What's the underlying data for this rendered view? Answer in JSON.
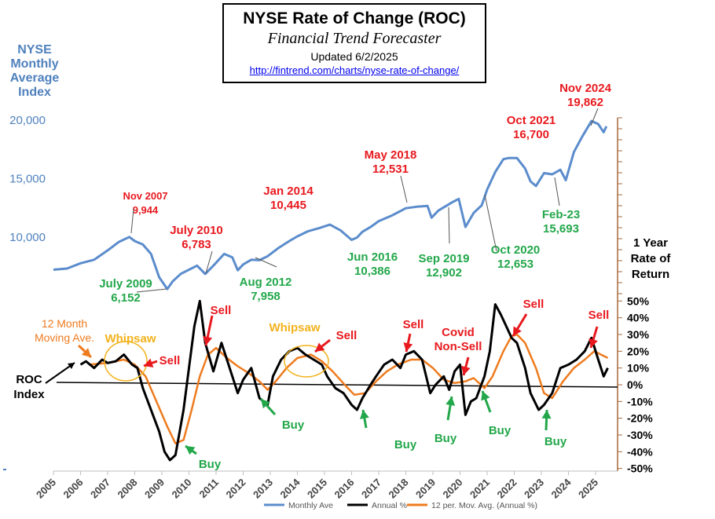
{
  "title": {
    "main": "NYSE  Rate of Change (ROC)",
    "subtitle": "Financial Trend Forecaster",
    "updated": "Updated  6/2/2025",
    "url": "http://fintrend.com/charts/nyse-rate-of-change/"
  },
  "colors": {
    "index": "#5b8ccc",
    "roc": "#000000",
    "ma": "#ee7b1e",
    "red": "#e8191e",
    "green": "#22a74a",
    "gold": "#f2b21c",
    "blue_text": "#4f81bd",
    "axis": "#7f7f7f",
    "right_axis": "#a6693c"
  },
  "chart_data": {
    "type": "line",
    "x_ticks": [
      "2005",
      "2006",
      "2007",
      "2008",
      "2009",
      "2010",
      "2011",
      "2012",
      "2013",
      "2014",
      "2015",
      "2016",
      "2017",
      "2018",
      "2019",
      "2020",
      "2021",
      "2022",
      "2023",
      "2024",
      "2025"
    ],
    "left_axis": {
      "title": "NYSE Monthly Average Index",
      "ticks": [
        "10,000",
        "15,000",
        "20,000"
      ],
      "tick_values": [
        10000,
        15000,
        20000
      ]
    },
    "right_axis": {
      "title": "1 Year Rate of Return",
      "ticks": [
        "50%",
        "40%",
        "30%",
        "20%",
        "10%",
        "0%",
        "-10%",
        "-20%",
        "-30%",
        "-40%",
        "-50%"
      ],
      "tick_values": [
        50,
        40,
        30,
        20,
        10,
        0,
        -10,
        -20,
        -30,
        -40,
        -50
      ]
    },
    "roc_label": "ROC Index",
    "legend": [
      "Monthly Ave",
      "Annual %",
      "12 per. Mov. Avg. (Annual %)"
    ],
    "series": [
      {
        "name": "Monthly Ave",
        "points": [
          [
            2005.0,
            7150
          ],
          [
            2005.5,
            7250
          ],
          [
            2006.0,
            7700
          ],
          [
            2006.5,
            8000
          ],
          [
            2007.0,
            8800
          ],
          [
            2007.4,
            9500
          ],
          [
            2007.8,
            9944
          ],
          [
            2008.0,
            9600
          ],
          [
            2008.3,
            9300
          ],
          [
            2008.6,
            8500
          ],
          [
            2008.9,
            6500
          ],
          [
            2009.2,
            5500
          ],
          [
            2009.4,
            6152
          ],
          [
            2009.7,
            6800
          ],
          [
            2010.0,
            7150
          ],
          [
            2010.3,
            7500
          ],
          [
            2010.6,
            6783
          ],
          [
            2010.9,
            7500
          ],
          [
            2011.3,
            8500
          ],
          [
            2011.6,
            8200
          ],
          [
            2011.8,
            7100
          ],
          [
            2012.0,
            7600
          ],
          [
            2012.3,
            8000
          ],
          [
            2012.6,
            7958
          ],
          [
            2012.9,
            8300
          ],
          [
            2013.3,
            9000
          ],
          [
            2013.7,
            9600
          ],
          [
            2014.0,
            10000
          ],
          [
            2014.4,
            10445
          ],
          [
            2014.8,
            10700
          ],
          [
            2015.2,
            11000
          ],
          [
            2015.6,
            10500
          ],
          [
            2016.0,
            9700
          ],
          [
            2016.2,
            9900
          ],
          [
            2016.4,
            10386
          ],
          [
            2016.7,
            10800
          ],
          [
            2017.0,
            11300
          ],
          [
            2017.5,
            11800
          ],
          [
            2018.0,
            12400
          ],
          [
            2018.4,
            12531
          ],
          [
            2018.8,
            12600
          ],
          [
            2018.95,
            11600
          ],
          [
            2019.2,
            12200
          ],
          [
            2019.7,
            12902
          ],
          [
            2019.95,
            13200
          ],
          [
            2020.2,
            10800
          ],
          [
            2020.5,
            12000
          ],
          [
            2020.8,
            12653
          ],
          [
            2021.0,
            14000
          ],
          [
            2021.3,
            15500
          ],
          [
            2021.6,
            16600
          ],
          [
            2021.8,
            16700
          ],
          [
            2022.1,
            16700
          ],
          [
            2022.4,
            15800
          ],
          [
            2022.6,
            14700
          ],
          [
            2022.8,
            14300
          ],
          [
            2023.1,
            15400
          ],
          [
            2023.4,
            15300
          ],
          [
            2023.7,
            15693
          ],
          [
            2023.9,
            14800
          ],
          [
            2024.2,
            17200
          ],
          [
            2024.5,
            18500
          ],
          [
            2024.85,
            19862
          ],
          [
            2025.1,
            19600
          ],
          [
            2025.3,
            18900
          ],
          [
            2025.4,
            19400
          ]
        ]
      },
      {
        "name": "Annual %",
        "points": [
          [
            2006.0,
            12
          ],
          [
            2006.2,
            14
          ],
          [
            2006.5,
            10
          ],
          [
            2006.8,
            15
          ],
          [
            2007.0,
            13
          ],
          [
            2007.3,
            14
          ],
          [
            2007.6,
            18
          ],
          [
            2007.9,
            12
          ],
          [
            2008.1,
            10
          ],
          [
            2008.3,
            -2
          ],
          [
            2008.6,
            -15
          ],
          [
            2008.9,
            -28
          ],
          [
            2009.1,
            -40
          ],
          [
            2009.3,
            -45
          ],
          [
            2009.5,
            -42
          ],
          [
            2009.8,
            -15
          ],
          [
            2010.0,
            10
          ],
          [
            2010.2,
            35
          ],
          [
            2010.4,
            50
          ],
          [
            2010.6,
            25
          ],
          [
            2010.9,
            8
          ],
          [
            2011.2,
            25
          ],
          [
            2011.4,
            15
          ],
          [
            2011.6,
            5
          ],
          [
            2011.8,
            -5
          ],
          [
            2012.0,
            3
          ],
          [
            2012.3,
            10
          ],
          [
            2012.6,
            -8
          ],
          [
            2012.9,
            -12
          ],
          [
            2013.1,
            5
          ],
          [
            2013.4,
            15
          ],
          [
            2013.7,
            20
          ],
          [
            2014.0,
            22
          ],
          [
            2014.3,
            18
          ],
          [
            2014.6,
            15
          ],
          [
            2014.9,
            12
          ],
          [
            2015.1,
            5
          ],
          [
            2015.4,
            -2
          ],
          [
            2015.7,
            -5
          ],
          [
            2016.0,
            -12
          ],
          [
            2016.2,
            -15
          ],
          [
            2016.4,
            -8
          ],
          [
            2016.7,
            0
          ],
          [
            2016.9,
            5
          ],
          [
            2017.2,
            12
          ],
          [
            2017.5,
            15
          ],
          [
            2017.8,
            10
          ],
          [
            2018.0,
            18
          ],
          [
            2018.3,
            20
          ],
          [
            2018.6,
            15
          ],
          [
            2018.9,
            -5
          ],
          [
            2019.1,
            0
          ],
          [
            2019.4,
            5
          ],
          [
            2019.6,
            -3
          ],
          [
            2019.8,
            8
          ],
          [
            2020.0,
            12
          ],
          [
            2020.2,
            -18
          ],
          [
            2020.4,
            -10
          ],
          [
            2020.6,
            -8
          ],
          [
            2020.9,
            5
          ],
          [
            2021.1,
            20
          ],
          [
            2021.3,
            48
          ],
          [
            2021.5,
            42
          ],
          [
            2021.7,
            35
          ],
          [
            2021.9,
            28
          ],
          [
            2022.1,
            25
          ],
          [
            2022.4,
            10
          ],
          [
            2022.6,
            -5
          ],
          [
            2022.9,
            -15
          ],
          [
            2023.1,
            -12
          ],
          [
            2023.4,
            -5
          ],
          [
            2023.7,
            10
          ],
          [
            2024.0,
            12
          ],
          [
            2024.3,
            15
          ],
          [
            2024.6,
            20
          ],
          [
            2024.85,
            28
          ],
          [
            2025.1,
            15
          ],
          [
            2025.3,
            5
          ],
          [
            2025.45,
            10
          ]
        ]
      },
      {
        "name": "12 per. Mov. Avg. (Annual %)",
        "points": [
          [
            2006.3,
            12
          ],
          [
            2007.0,
            13
          ],
          [
            2007.6,
            15
          ],
          [
            2008.0,
            12
          ],
          [
            2008.4,
            5
          ],
          [
            2008.8,
            -10
          ],
          [
            2009.2,
            -25
          ],
          [
            2009.5,
            -35
          ],
          [
            2009.8,
            -33
          ],
          [
            2010.1,
            -15
          ],
          [
            2010.4,
            5
          ],
          [
            2010.7,
            18
          ],
          [
            2011.0,
            22
          ],
          [
            2011.4,
            16
          ],
          [
            2011.8,
            11
          ],
          [
            2012.2,
            7
          ],
          [
            2012.6,
            2
          ],
          [
            2012.9,
            -3
          ],
          [
            2013.2,
            2
          ],
          [
            2013.6,
            10
          ],
          [
            2014.0,
            16
          ],
          [
            2014.5,
            18
          ],
          [
            2014.9,
            14
          ],
          [
            2015.3,
            8
          ],
          [
            2015.8,
            -1
          ],
          [
            2016.1,
            -6
          ],
          [
            2016.5,
            -5
          ],
          [
            2016.9,
            2
          ],
          [
            2017.3,
            8
          ],
          [
            2017.7,
            12
          ],
          [
            2018.2,
            15
          ],
          [
            2018.6,
            15
          ],
          [
            2019.0,
            10
          ],
          [
            2019.4,
            3
          ],
          [
            2019.8,
            1
          ],
          [
            2020.2,
            2
          ],
          [
            2020.5,
            4
          ],
          [
            2020.9,
            -2
          ],
          [
            2021.2,
            5
          ],
          [
            2021.6,
            20
          ],
          [
            2021.9,
            29
          ],
          [
            2022.1,
            30
          ],
          [
            2022.4,
            25
          ],
          [
            2022.8,
            10
          ],
          [
            2023.1,
            -5
          ],
          [
            2023.4,
            -8
          ],
          [
            2023.8,
            2
          ],
          [
            2024.2,
            10
          ],
          [
            2024.6,
            15
          ],
          [
            2024.95,
            20
          ],
          [
            2025.2,
            18
          ],
          [
            2025.45,
            16
          ]
        ]
      }
    ],
    "annotations": [
      {
        "id": "nov2007",
        "lines": [
          "Nov 2007",
          "9,944"
        ],
        "color": "red"
      },
      {
        "id": "july2009",
        "lines": [
          "July 2009",
          "6,152"
        ],
        "color": "green"
      },
      {
        "id": "july2010",
        "lines": [
          "July 2010",
          "6,783"
        ],
        "color": "red"
      },
      {
        "id": "aug2012",
        "lines": [
          "Aug 2012",
          "7,958"
        ],
        "color": "green"
      },
      {
        "id": "jan2014",
        "lines": [
          "Jan 2014",
          "10,445"
        ],
        "color": "red"
      },
      {
        "id": "jun2016",
        "lines": [
          "Jun 2016",
          "10,386"
        ],
        "color": "green"
      },
      {
        "id": "may2018",
        "lines": [
          "May 2018",
          "12,531"
        ],
        "color": "red"
      },
      {
        "id": "sep2019",
        "lines": [
          "Sep 2019",
          "12,902"
        ],
        "color": "green"
      },
      {
        "id": "oct2020",
        "lines": [
          "Oct 2020",
          "12,653"
        ],
        "color": "green"
      },
      {
        "id": "oct2021",
        "lines": [
          "Oct 2021",
          "16,700"
        ],
        "color": "red"
      },
      {
        "id": "feb23",
        "lines": [
          "Feb-23",
          "15,693"
        ],
        "color": "green"
      },
      {
        "id": "nov2024",
        "lines": [
          "Nov 2024",
          "19,862"
        ],
        "color": "red"
      },
      {
        "id": "ma12",
        "lines": [
          "12 Month",
          "Moving Ave."
        ],
        "color": "orange"
      },
      {
        "id": "whipsaw1",
        "lines": [
          "Whipsaw"
        ],
        "color": "gold"
      },
      {
        "id": "whipsaw2",
        "lines": [
          "Whipsaw"
        ],
        "color": "gold"
      },
      {
        "id": "covid",
        "lines": [
          "Covid",
          "Non-Sell"
        ],
        "color": "red"
      },
      {
        "id": "sell1",
        "lines": [
          "Sell"
        ],
        "color": "red"
      },
      {
        "id": "sell2",
        "lines": [
          "Sell"
        ],
        "color": "red"
      },
      {
        "id": "sell3",
        "lines": [
          "Sell"
        ],
        "color": "red"
      },
      {
        "id": "sell4",
        "lines": [
          "Sell"
        ],
        "color": "red"
      },
      {
        "id": "sell5",
        "lines": [
          "Sell"
        ],
        "color": "red"
      },
      {
        "id": "sell6",
        "lines": [
          "Sell"
        ],
        "color": "red"
      },
      {
        "id": "buy1",
        "lines": [
          "Buy"
        ],
        "color": "green"
      },
      {
        "id": "buy2",
        "lines": [
          "Buy"
        ],
        "color": "green"
      },
      {
        "id": "buy3",
        "lines": [
          "Buy"
        ],
        "color": "green"
      },
      {
        "id": "buy4",
        "lines": [
          "Buy"
        ],
        "color": "green"
      },
      {
        "id": "buy5",
        "lines": [
          "Buy"
        ],
        "color": "green"
      },
      {
        "id": "buy6",
        "lines": [
          "Buy"
        ],
        "color": "green"
      }
    ]
  }
}
